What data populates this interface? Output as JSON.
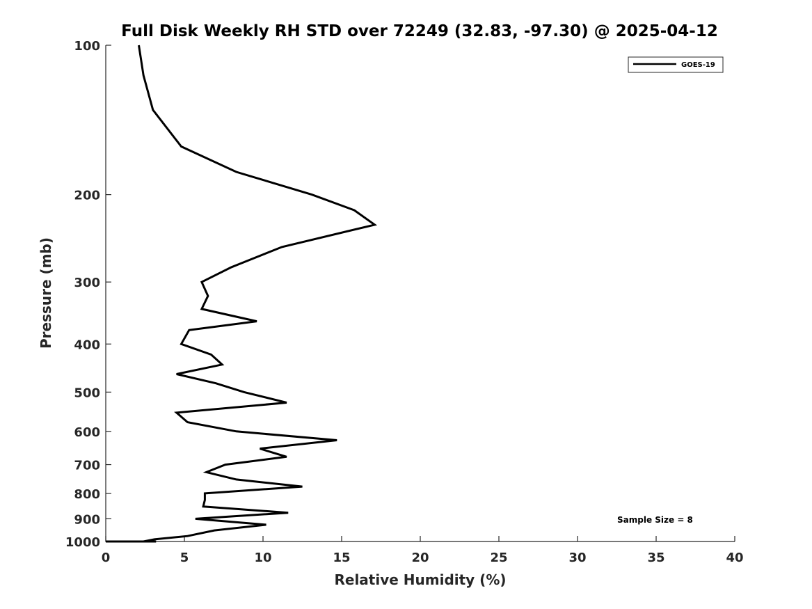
{
  "chart_data": {
    "type": "line",
    "title": "Full Disk Weekly RH STD over 72249 (32.83, -97.30) @ 2025-04-12",
    "xlabel": "Relative Humidity (%)",
    "ylabel": "Pressure (mb)",
    "xlim": [
      0,
      40
    ],
    "ylim": [
      100,
      1000
    ],
    "y_scale": "log",
    "y_reversed": true,
    "xticks": [
      0,
      5,
      10,
      15,
      20,
      25,
      30,
      35,
      40
    ],
    "yticks": [
      100,
      200,
      300,
      400,
      500,
      600,
      700,
      800,
      900,
      1000
    ],
    "grid": false,
    "legend": {
      "position": "top-right",
      "entries": [
        "GOES-19"
      ]
    },
    "annotation": "Sample Size = 8",
    "series": [
      {
        "name": "GOES-19",
        "color": "#000000",
        "x": [
          2.1,
          2.4,
          3.0,
          4.8,
          8.3,
          13.1,
          15.8,
          17.1,
          11.2,
          8.0,
          6.1,
          6.5,
          6.1,
          9.6,
          5.3,
          4.8,
          6.7,
          7.4,
          4.5,
          7.0,
          8.8,
          11.5,
          4.5,
          5.2,
          8.3,
          14.7,
          9.8,
          11.5,
          7.6,
          6.4,
          8.3,
          12.5,
          6.3,
          6.3,
          6.2,
          11.6,
          5.7,
          10.2,
          6.9,
          5.2,
          3.1,
          2.4,
          3.2,
          3.2,
          0.0
        ],
        "y": [
          100,
          115,
          135,
          160,
          180,
          200,
          215,
          230,
          255,
          280,
          300,
          320,
          340,
          360,
          375,
          400,
          420,
          440,
          460,
          480,
          500,
          525,
          550,
          575,
          600,
          625,
          650,
          675,
          700,
          725,
          750,
          775,
          800,
          825,
          850,
          875,
          900,
          925,
          950,
          975,
          990,
          1000,
          1000,
          1000,
          1000
        ]
      }
    ]
  }
}
